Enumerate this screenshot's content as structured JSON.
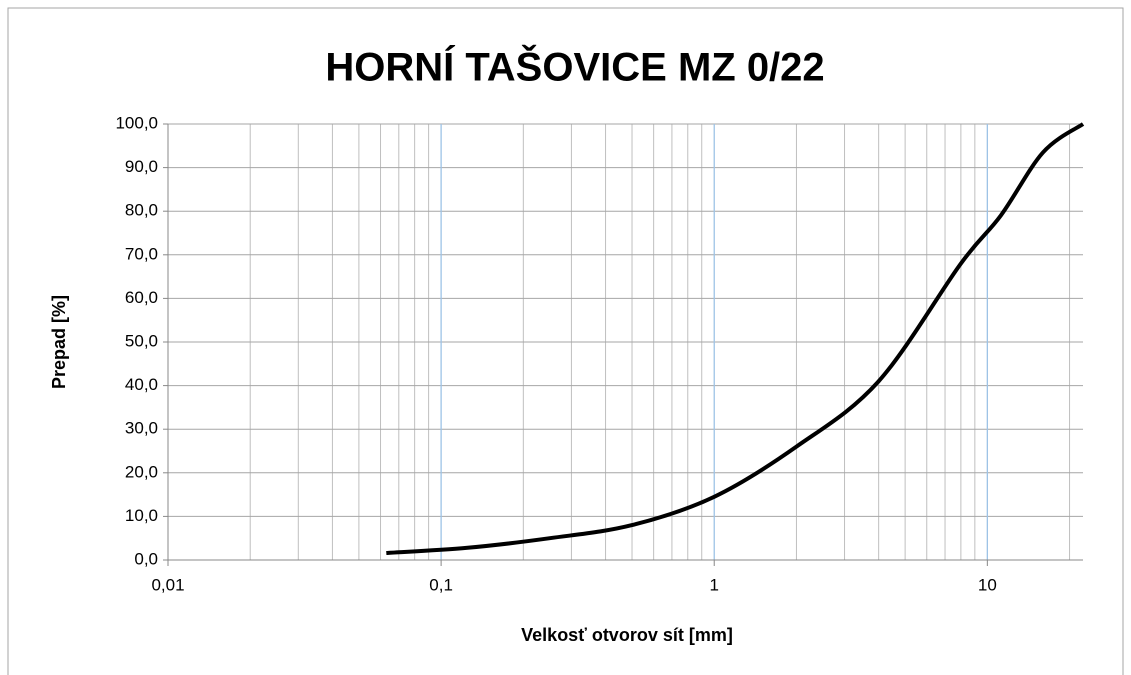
{
  "chart_data": {
    "type": "line",
    "title": "HORNÍ TAŠOVICE MZ 0/22",
    "x_label": "Velkosť otvorov sít [mm]",
    "y_label": "Prepad [%]",
    "x": [
      0.063,
      0.125,
      0.25,
      0.5,
      1,
      2,
      4,
      8,
      11.2,
      16,
      22.4
    ],
    "series": [
      {
        "name": "Prepad",
        "color": "#000000",
        "values": [
          1.6,
          2.8,
          5.0,
          8.0,
          14.5,
          26,
          41,
          68,
          79,
          93.5,
          100
        ]
      }
    ],
    "x_log": true,
    "xlim": [
      0.01,
      22.4
    ],
    "xticks": [
      {
        "value": 0.01,
        "label": "0,01"
      },
      {
        "value": 0.1,
        "label": "0,1"
      },
      1,
      10
    ],
    "ylim": [
      0,
      100
    ],
    "yticks": [
      {
        "value": 0,
        "label": "0,0"
      },
      {
        "value": 10,
        "label": "10,0"
      },
      {
        "value": 20,
        "label": "20,0"
      },
      {
        "value": 30,
        "label": "30,0"
      },
      {
        "value": 40,
        "label": "40,0"
      },
      {
        "value": 50,
        "label": "50,0"
      },
      {
        "value": 60,
        "label": "60,0"
      },
      {
        "value": 70,
        "label": "70,0"
      },
      {
        "value": 80,
        "label": "80,0"
      },
      {
        "value": 90,
        "label": "90,0"
      },
      {
        "value": 100,
        "label": "100,0"
      }
    ],
    "grid": true
  }
}
